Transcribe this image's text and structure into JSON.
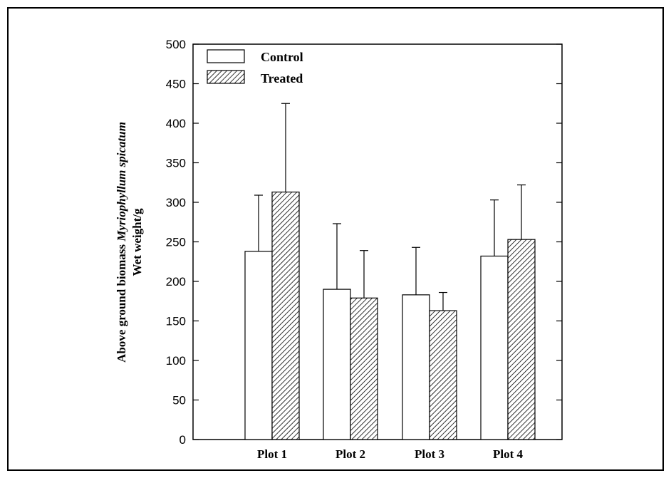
{
  "chart_data": {
    "type": "bar",
    "categories": [
      "Plot 1",
      "Plot 2",
      "Plot 3",
      "Plot 4"
    ],
    "series": [
      {
        "name": "Control",
        "values": [
          238,
          190,
          183,
          232
        ],
        "errors": [
          71,
          83,
          60,
          71
        ],
        "fill": "#ffffff"
      },
      {
        "name": "Treated",
        "values": [
          313,
          179,
          163,
          253
        ],
        "errors": [
          112,
          60,
          23,
          69
        ],
        "fill": "hatched"
      }
    ],
    "ylabel": {
      "prefix": "Above ground biomass ",
      "species": "Myriophyllum spicatum",
      "line2": "Wet weight/g"
    },
    "xlabel": "",
    "ylim": [
      0,
      500
    ],
    "yticks": [
      "0",
      "50",
      "100",
      "150",
      "200",
      "250",
      "300",
      "350",
      "400",
      "450",
      "500"
    ],
    "legend_position": "top-left",
    "grid": false
  },
  "colors": {
    "axis": "#000000",
    "control_fill": "#ffffff",
    "hatch": "#000000"
  }
}
